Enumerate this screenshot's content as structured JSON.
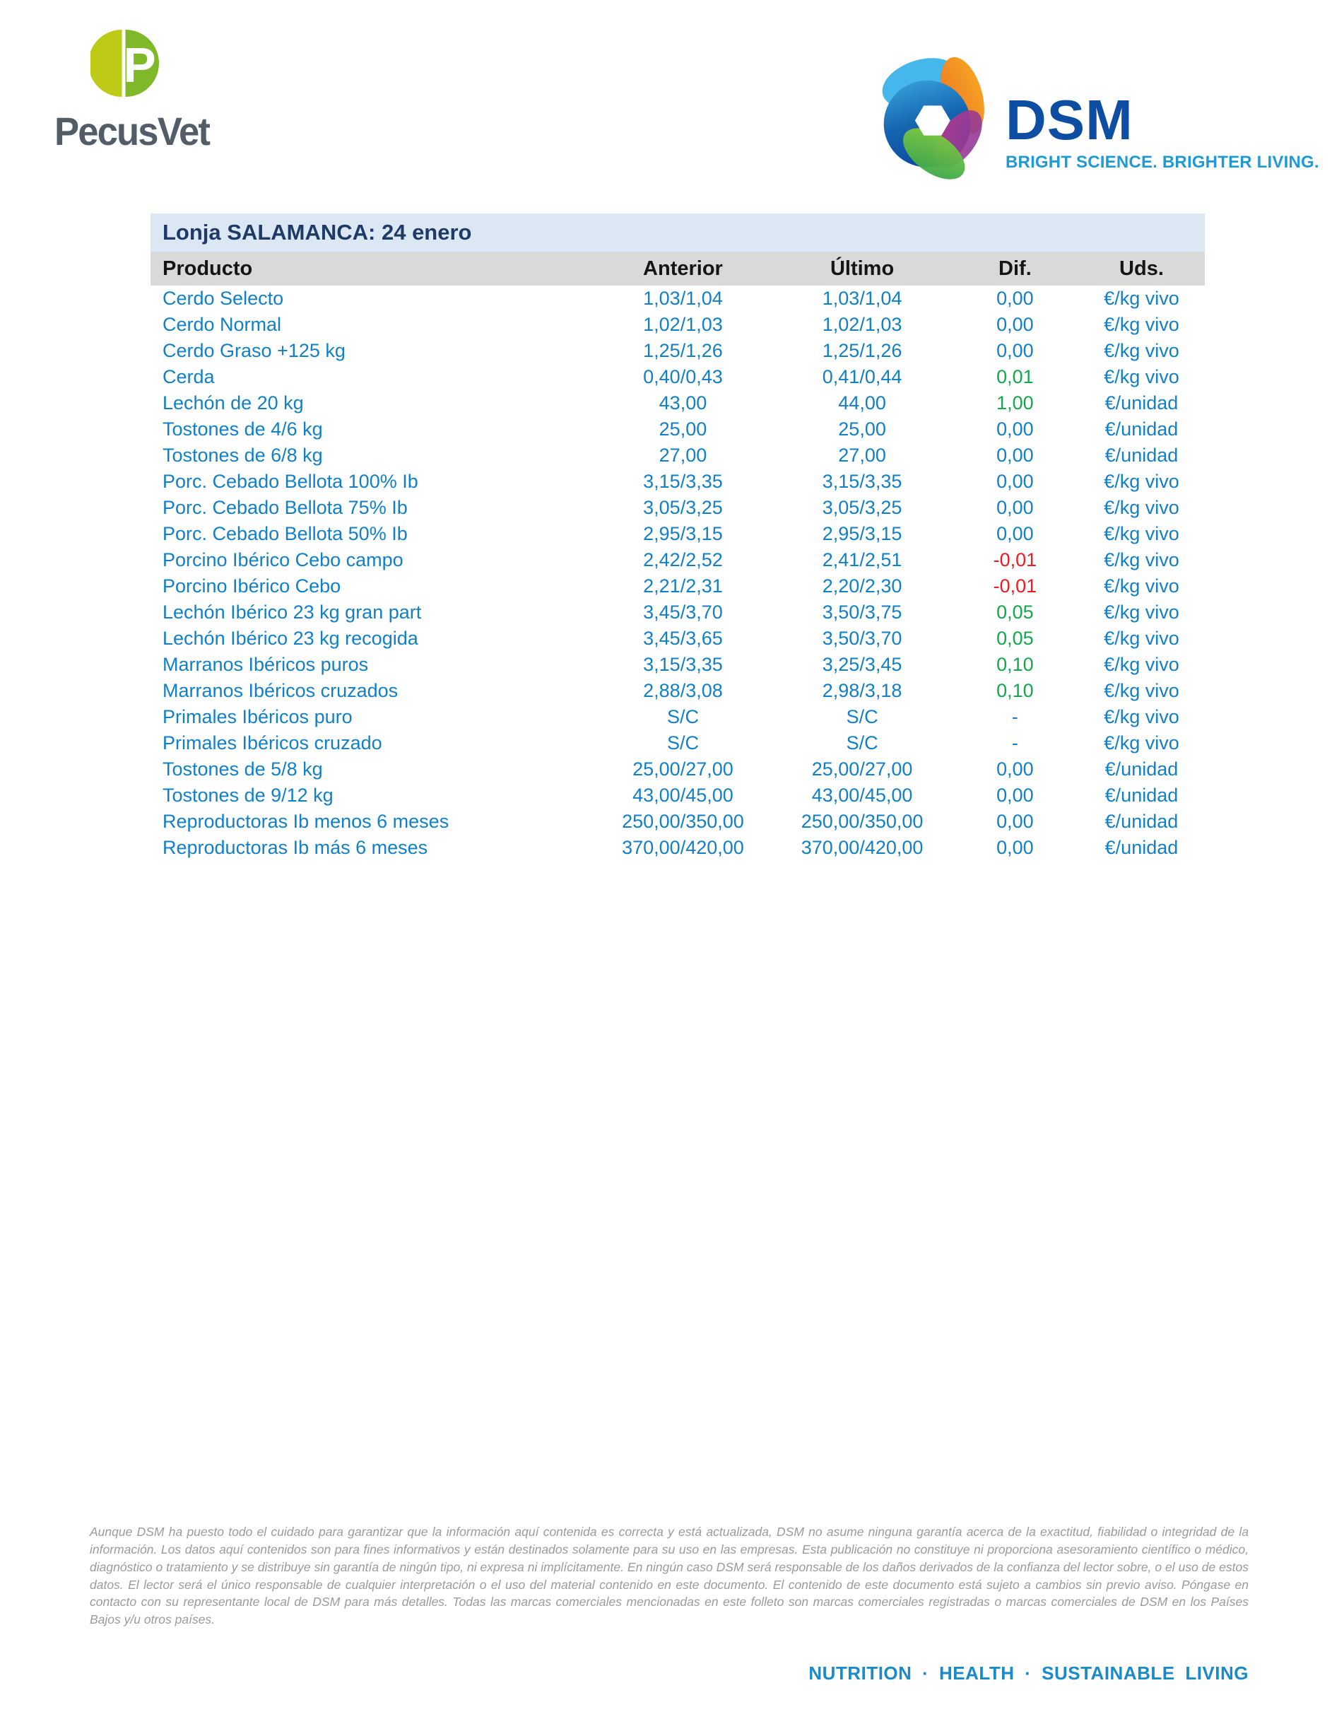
{
  "branding": {
    "pecusvet": {
      "wordmark": "PecusVet"
    },
    "dsm": {
      "name": "DSM",
      "tagline": "BRIGHT SCIENCE. BRIGHTER LIVING."
    }
  },
  "table": {
    "title": "Lonja SALAMANCA: 24 enero",
    "columns": [
      "Producto",
      "Anterior",
      "Último",
      "Dif.",
      "Uds."
    ],
    "rows": [
      {
        "producto": "Cerdo Selecto",
        "anterior": "1,03/1,04",
        "ultimo": "1,03/1,04",
        "dif": "0,00",
        "trend": "flat",
        "uds": "€/kg vivo"
      },
      {
        "producto": "Cerdo Normal",
        "anterior": "1,02/1,03",
        "ultimo": "1,02/1,03",
        "dif": "0,00",
        "trend": "flat",
        "uds": "€/kg vivo"
      },
      {
        "producto": "Cerdo Graso +125 kg",
        "anterior": "1,25/1,26",
        "ultimo": "1,25/1,26",
        "dif": "0,00",
        "trend": "flat",
        "uds": "€/kg vivo"
      },
      {
        "producto": "Cerda",
        "anterior": "0,40/0,43",
        "ultimo": "0,41/0,44",
        "dif": "0,01",
        "trend": "up",
        "uds": "€/kg vivo"
      },
      {
        "producto": "Lechón de 20 kg",
        "anterior": "43,00",
        "ultimo": "44,00",
        "dif": "1,00",
        "trend": "up",
        "uds": "€/unidad"
      },
      {
        "producto": "Tostones de 4/6 kg",
        "anterior": "25,00",
        "ultimo": "25,00",
        "dif": "0,00",
        "trend": "flat",
        "uds": "€/unidad"
      },
      {
        "producto": "Tostones de 6/8 kg",
        "anterior": "27,00",
        "ultimo": "27,00",
        "dif": "0,00",
        "trend": "flat",
        "uds": "€/unidad"
      },
      {
        "producto": "Porc. Cebado Bellota 100% Ib",
        "anterior": "3,15/3,35",
        "ultimo": "3,15/3,35",
        "dif": "0,00",
        "trend": "flat",
        "uds": "€/kg vivo"
      },
      {
        "producto": "Porc. Cebado Bellota 75% Ib",
        "anterior": "3,05/3,25",
        "ultimo": "3,05/3,25",
        "dif": "0,00",
        "trend": "flat",
        "uds": "€/kg vivo"
      },
      {
        "producto": "Porc. Cebado Bellota 50% Ib",
        "anterior": "2,95/3,15",
        "ultimo": "2,95/3,15",
        "dif": "0,00",
        "trend": "flat",
        "uds": "€/kg vivo"
      },
      {
        "producto": "Porcino Ibérico Cebo campo",
        "anterior": "2,42/2,52",
        "ultimo": "2,41/2,51",
        "dif": "-0,01",
        "trend": "down",
        "uds": "€/kg vivo"
      },
      {
        "producto": "Porcino Ibérico Cebo",
        "anterior": "2,21/2,31",
        "ultimo": "2,20/2,30",
        "dif": "-0,01",
        "trend": "down",
        "uds": "€/kg vivo"
      },
      {
        "producto": "Lechón Ibérico 23 kg gran part",
        "anterior": "3,45/3,70",
        "ultimo": "3,50/3,75",
        "dif": "0,05",
        "trend": "up",
        "uds": "€/kg vivo"
      },
      {
        "producto": "Lechón Ibérico 23 kg recogida",
        "anterior": "3,45/3,65",
        "ultimo": "3,50/3,70",
        "dif": "0,05",
        "trend": "up",
        "uds": "€/kg vivo"
      },
      {
        "producto": "Marranos Ibéricos puros",
        "anterior": "3,15/3,35",
        "ultimo": "3,25/3,45",
        "dif": "0,10",
        "trend": "up",
        "uds": "€/kg vivo"
      },
      {
        "producto": "Marranos Ibéricos cruzados",
        "anterior": "2,88/3,08",
        "ultimo": "2,98/3,18",
        "dif": "0,10",
        "trend": "up",
        "uds": "€/kg vivo"
      },
      {
        "producto": "Primales Ibéricos puro",
        "anterior": "S/C",
        "ultimo": "S/C",
        "dif": "-",
        "trend": "none",
        "uds": "€/kg vivo"
      },
      {
        "producto": "Primales Ibéricos cruzado",
        "anterior": "S/C",
        "ultimo": "S/C",
        "dif": "-",
        "trend": "none",
        "uds": "€/kg vivo"
      },
      {
        "producto": "Tostones de 5/8 kg",
        "anterior": "25,00/27,00",
        "ultimo": "25,00/27,00",
        "dif": "0,00",
        "trend": "flat",
        "uds": "€/unidad"
      },
      {
        "producto": "Tostones de 9/12 kg",
        "anterior": "43,00/45,00",
        "ultimo": "43,00/45,00",
        "dif": "0,00",
        "trend": "flat",
        "uds": "€/unidad"
      },
      {
        "producto": "Reproductoras Ib menos 6 meses",
        "anterior": "250,00/350,00",
        "ultimo": "250,00/350,00",
        "dif": "0,00",
        "trend": "flat",
        "uds": "€/unidad"
      },
      {
        "producto": "Reproductoras Ib más 6 meses",
        "anterior": "370,00/420,00",
        "ultimo": "370,00/420,00",
        "dif": "0,00",
        "trend": "flat",
        "uds": "€/unidad"
      }
    ]
  },
  "disclaimer": {
    "text": "Aunque DSM ha puesto todo el cuidado para garantizar que la información aquí contenida es correcta y está actualizada, DSM no asume ninguna garantía acerca de la exactitud, fiabilidad o integridad de la información. Los datos aquí contenidos son para fines informativos y están destinados solamente para su uso en las empresas. Esta publicación no constituye ni proporciona asesoramiento científico o médico, diagnóstico o tratamiento y se distribuye sin garantía de ningún tipo, ni expresa ni implícitamente. En ningún caso DSM será responsable de los daños derivados de la confianza del lector sobre, o el uso de estos datos. El lector será el único responsable de cualquier interpretación o el uso del material contenido en este documento. El contenido de este documento está sujeto a cambios sin previo aviso. Póngase en contacto con su representante local de DSM para más detalles. Todas las marcas comerciales mencionadas en este folleto son marcas comerciales registradas o marcas comerciales de DSM en los Países Bajos y/u otros países."
  },
  "footer": {
    "strapline": "NUTRITION · HEALTH · SUSTAINABLE LIVING"
  },
  "colors": {
    "table_text_blue": "#1180c8",
    "positive_green": "#12a84b",
    "negative_red": "#ed1c24",
    "title_navy": "#1e3a66",
    "title_bar_bg": "#dbe8f4",
    "header_row_bg": "#d9d9d9",
    "header_text": "#151515",
    "dsm_blue": "#0d4ea2",
    "dsm_light_blue": "#1e9bd7",
    "footer_blue": "#1b8ac9",
    "pecus_green": "#7fb92a",
    "pecus_lime": "#bdca16",
    "wordmark_gray": "#535d68",
    "disclaimer_gray": "#9b9b9b"
  }
}
